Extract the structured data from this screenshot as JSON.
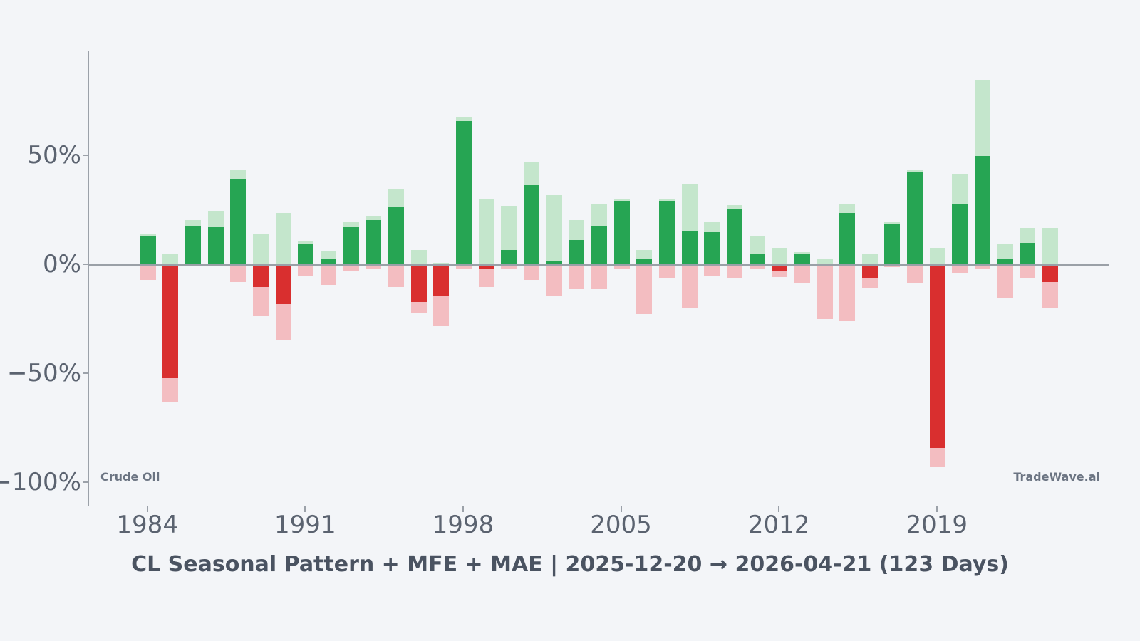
{
  "title": "CL Seasonal Pattern + MFE + MAE | 2025-12-20 → 2026-04-21 (123 Days)",
  "watermark_left": "Crude Oil",
  "watermark_right": "TradeWave.ai",
  "colors": {
    "background": "#f3f5f8",
    "return_positive": "#26a553",
    "mfe_light_green": "#c4e6cc",
    "return_negative": "#d92f2f",
    "mae_pink": "#f3bdc1",
    "axis_gray": "#9ba1a9",
    "tick_label_gray": "#5b6370",
    "title_gray": "#4a5361"
  },
  "chart_data": {
    "type": "bar",
    "title": "CL Seasonal Pattern + MFE + MAE | 2025-12-20 → 2026-04-21 (123 Days)",
    "xlabel": "",
    "ylabel": "",
    "ylim": [
      -111,
      98
    ],
    "grid": false,
    "legend": "none",
    "y_ticks": [
      {
        "value": 50,
        "label": "50%"
      },
      {
        "value": 0,
        "label": "0%"
      },
      {
        "value": -50,
        "label": "−50%"
      },
      {
        "value": -100,
        "label": "−100%"
      }
    ],
    "x_ticks": [
      {
        "year": 1984,
        "label": "1984"
      },
      {
        "year": 1991,
        "label": "1991"
      },
      {
        "year": 1998,
        "label": "1998"
      },
      {
        "year": 2005,
        "label": "2005"
      },
      {
        "year": 2012,
        "label": "2012"
      },
      {
        "year": 2019,
        "label": "2019"
      }
    ],
    "categories": [
      1984,
      1985,
      1986,
      1987,
      1988,
      1989,
      1990,
      1991,
      1992,
      1993,
      1994,
      1995,
      1996,
      1997,
      1998,
      1999,
      2000,
      2001,
      2002,
      2003,
      2004,
      2005,
      2006,
      2007,
      2008,
      2009,
      2010,
      2011,
      2012,
      2013,
      2014,
      2015,
      2016,
      2017,
      2018,
      2019,
      2020,
      2021,
      2022,
      2023,
      2024
    ],
    "series": [
      {
        "name": "Return %",
        "values": [
          13.5,
          -52,
          18,
          17.5,
          39.5,
          -10,
          -18,
          9.5,
          3,
          17.5,
          20.5,
          26.5,
          -17,
          -14,
          66,
          -2,
          7,
          36.5,
          2,
          11.5,
          18,
          29.5,
          3,
          29.5,
          15.5,
          15,
          26,
          5,
          -2.5,
          5,
          -0.5,
          24,
          -6,
          19,
          42.5,
          -84,
          28,
          50,
          3,
          10,
          -8
        ]
      },
      {
        "name": "MFE %",
        "values": [
          14,
          5,
          20.5,
          25,
          43.5,
          14,
          24,
          11,
          6.5,
          19.5,
          22.5,
          35,
          7,
          1,
          68,
          30,
          27,
          47,
          32,
          20.5,
          28,
          30.5,
          7,
          30.5,
          37,
          19.5,
          27.5,
          13,
          8,
          6,
          3,
          28,
          5,
          20,
          43.5,
          8,
          42,
          85,
          9.5,
          17,
          17
        ]
      },
      {
        "name": "MAE %",
        "values": [
          -7,
          -63,
          -0.5,
          -0.5,
          -8,
          -23.5,
          -34.5,
          -5,
          -9,
          -3,
          -1.5,
          -10,
          -22,
          -28,
          -2,
          -10,
          -1.5,
          -7,
          -14.5,
          -11,
          -11,
          -1.5,
          -22.5,
          -6,
          -20,
          -5,
          -6,
          -2,
          -5.5,
          -8.5,
          -25,
          -26,
          -10.5,
          -1,
          -8.5,
          -93,
          -3.5,
          -1.5,
          -15,
          -6,
          -19.5
        ]
      }
    ]
  }
}
